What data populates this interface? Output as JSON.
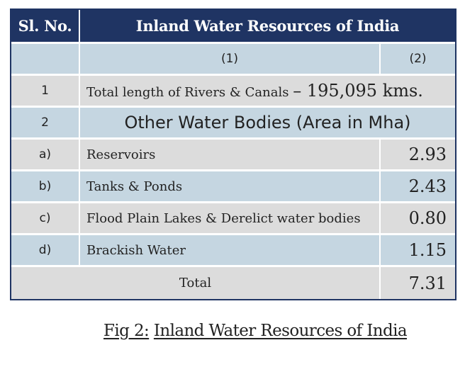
{
  "table": {
    "header": {
      "sl_no": "Sl. No.",
      "title": "Inland Water Resources of India"
    },
    "column_labels": {
      "col1": "(1)",
      "col2": "(2)"
    },
    "row1": {
      "sl": "1",
      "label": "Total length of Rivers & Canals",
      "value": "– 195,095 kms."
    },
    "row2": {
      "sl": "2",
      "label": "Other Water Bodies (Area in Mha)"
    },
    "sub_rows": [
      {
        "sl": "a)",
        "label": "Reservoirs",
        "value": "2.93"
      },
      {
        "sl": "b)",
        "label": "Tanks & Ponds",
        "value": "2.43"
      },
      {
        "sl": "c)",
        "label": "Flood Plain Lakes & Derelict water bodies",
        "value": "0.80"
      },
      {
        "sl": "d)",
        "label": "Brackish Water",
        "value": "1.15"
      }
    ],
    "total": {
      "label": "Total",
      "value": "7.31"
    }
  },
  "caption": {
    "prefix": "Fig 2:",
    "text": "Inland Water Resources of India"
  },
  "colors": {
    "header_bg": "#1f3463",
    "row_blue": "#c5d6e1",
    "row_grey": "#dcdcdc"
  }
}
